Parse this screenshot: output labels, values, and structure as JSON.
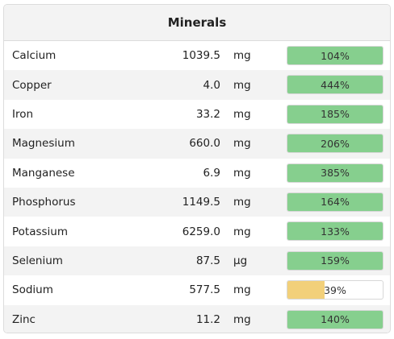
{
  "title": "Minerals",
  "colors": {
    "good": "#86cf8e",
    "low": "#f2d07a",
    "alt_row": "#f3f3f3",
    "border": "#dcdcdc"
  },
  "rows": [
    {
      "name": "Calcium",
      "amount": "1039.5",
      "unit": "mg",
      "percent_label": "104%",
      "percent": 104,
      "status": "good"
    },
    {
      "name": "Copper",
      "amount": "4.0",
      "unit": "mg",
      "percent_label": "444%",
      "percent": 444,
      "status": "good"
    },
    {
      "name": "Iron",
      "amount": "33.2",
      "unit": "mg",
      "percent_label": "185%",
      "percent": 185,
      "status": "good"
    },
    {
      "name": "Magnesium",
      "amount": "660.0",
      "unit": "mg",
      "percent_label": "206%",
      "percent": 206,
      "status": "good"
    },
    {
      "name": "Manganese",
      "amount": "6.9",
      "unit": "mg",
      "percent_label": "385%",
      "percent": 385,
      "status": "good"
    },
    {
      "name": "Phosphorus",
      "amount": "1149.5",
      "unit": "mg",
      "percent_label": "164%",
      "percent": 164,
      "status": "good"
    },
    {
      "name": "Potassium",
      "amount": "6259.0",
      "unit": "mg",
      "percent_label": "133%",
      "percent": 133,
      "status": "good"
    },
    {
      "name": "Selenium",
      "amount": "87.5",
      "unit": "µg",
      "percent_label": "159%",
      "percent": 159,
      "status": "good"
    },
    {
      "name": "Sodium",
      "amount": "577.5",
      "unit": "mg",
      "percent_label": "39%",
      "percent": 39,
      "status": "low"
    },
    {
      "name": "Zinc",
      "amount": "11.2",
      "unit": "mg",
      "percent_label": "140%",
      "percent": 140,
      "status": "good"
    }
  ]
}
